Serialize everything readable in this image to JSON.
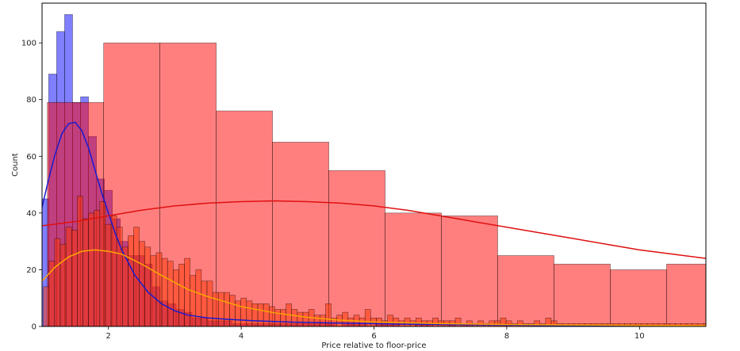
{
  "chart_data": {
    "type": "histogram",
    "title": "",
    "xlabel": "Price relative to floor-price",
    "ylabel": "Count",
    "xlim": [
      1,
      11
    ],
    "ylim": [
      0,
      114
    ],
    "xticks": [
      2,
      4,
      6,
      8,
      10
    ],
    "yticks": [
      0,
      20,
      40,
      60,
      80,
      100
    ],
    "grid": false,
    "legend": "none",
    "colors": {
      "blue": "#0000ff",
      "red_wide": "#ff0000",
      "red_fine": "#ff3300",
      "kde_blue": "#1a1ad0",
      "kde_red": "#e01010",
      "kde_orange": "#ffa500"
    },
    "series": [
      {
        "color_key": "blue",
        "bin_start": 0.98,
        "bin_width": 0.12,
        "values": [
          45,
          89,
          104,
          110,
          79,
          81,
          67,
          52,
          48,
          38,
          30,
          25,
          25,
          22,
          14,
          9,
          8,
          6,
          5,
          3,
          3,
          2,
          2,
          2,
          1,
          1,
          1,
          1,
          1,
          1,
          1,
          1,
          1,
          1,
          1,
          1,
          1,
          0,
          1,
          1,
          1,
          0,
          1,
          1,
          1,
          0,
          0,
          1,
          1,
          0,
          0,
          1,
          0,
          1,
          0,
          0,
          0,
          0,
          1,
          0
        ]
      },
      {
        "color_key": "red_wide",
        "bin_start": 1.08,
        "bin_width": 0.848,
        "values": [
          79,
          100,
          100,
          76,
          65,
          55,
          40,
          39,
          25,
          22,
          20,
          22
        ]
      },
      {
        "color_key": "red_fine",
        "bin_start": 1.02,
        "bin_width": 0.085,
        "values": [
          14,
          23,
          31,
          29,
          35,
          34,
          46,
          38,
          40,
          41,
          44,
          36,
          39,
          35,
          28,
          32,
          35,
          30,
          28,
          25,
          26,
          24,
          23,
          20,
          22,
          24,
          18,
          20,
          16,
          16,
          12,
          12,
          12,
          11,
          9,
          10,
          9,
          8,
          8,
          8,
          7,
          6,
          6,
          8,
          6,
          5,
          5,
          6,
          4,
          4,
          8,
          3,
          4,
          5,
          3,
          4,
          3,
          6,
          3,
          3,
          2,
          4,
          3,
          2,
          3,
          2,
          3,
          2,
          2,
          3,
          2,
          2,
          2,
          3,
          1,
          2,
          1,
          2,
          1,
          2,
          2,
          3,
          2,
          1,
          2,
          1,
          1,
          2,
          1,
          3,
          2,
          1,
          1,
          1,
          1,
          1,
          1,
          1,
          1,
          1,
          1,
          1,
          1,
          1,
          1,
          1,
          1,
          1,
          1,
          1,
          1,
          1,
          1,
          1,
          1,
          1,
          1,
          1,
          1,
          1
        ]
      }
    ],
    "kde_curves": [
      {
        "color_key": "kde_blue",
        "x": [
          1.0,
          1.1,
          1.2,
          1.3,
          1.4,
          1.5,
          1.6,
          1.7,
          1.8,
          1.9,
          2.0,
          2.1,
          2.2,
          2.4,
          2.6,
          2.8,
          3.0,
          3.2,
          3.5,
          3.8,
          4.2,
          4.8,
          5.5,
          6.5,
          7.5,
          8.5,
          9.5,
          11.0
        ],
        "y": [
          42,
          52,
          61,
          68,
          71.5,
          72,
          69,
          63,
          55,
          47,
          40,
          33,
          27,
          18,
          12,
          8,
          5.5,
          4,
          3,
          2.5,
          2,
          1.5,
          1.2,
          0.8,
          0.6,
          0.4,
          0.3,
          0.2
        ]
      },
      {
        "color_key": "kde_orange",
        "x": [
          1.0,
          1.2,
          1.4,
          1.6,
          1.8,
          2.0,
          2.2,
          2.5,
          2.8,
          3.0,
          3.2,
          3.5,
          4.0,
          4.5,
          5.0,
          5.5,
          6.0,
          7.0,
          8.0,
          9.0,
          10.0,
          11.0
        ],
        "y": [
          16,
          21,
          24.5,
          26.5,
          27,
          26.5,
          25.5,
          22,
          18,
          15.5,
          13,
          10.5,
          7,
          4.8,
          3.2,
          2.2,
          1.6,
          1,
          0.7,
          0.5,
          0.4,
          0.3
        ]
      },
      {
        "color_key": "kde_red",
        "x": [
          1.0,
          1.5,
          2.0,
          2.5,
          3.0,
          3.5,
          4.0,
          4.5,
          5.0,
          5.5,
          6.0,
          6.5,
          7.0,
          7.5,
          8.0,
          8.5,
          9.0,
          9.5,
          10.0,
          10.5,
          11.0
        ],
        "y": [
          35.5,
          37,
          39,
          41,
          42.5,
          43.5,
          44,
          44.3,
          44,
          43.5,
          42.5,
          41,
          39,
          37,
          35,
          33,
          31,
          29,
          27,
          25.5,
          24
        ]
      }
    ]
  }
}
